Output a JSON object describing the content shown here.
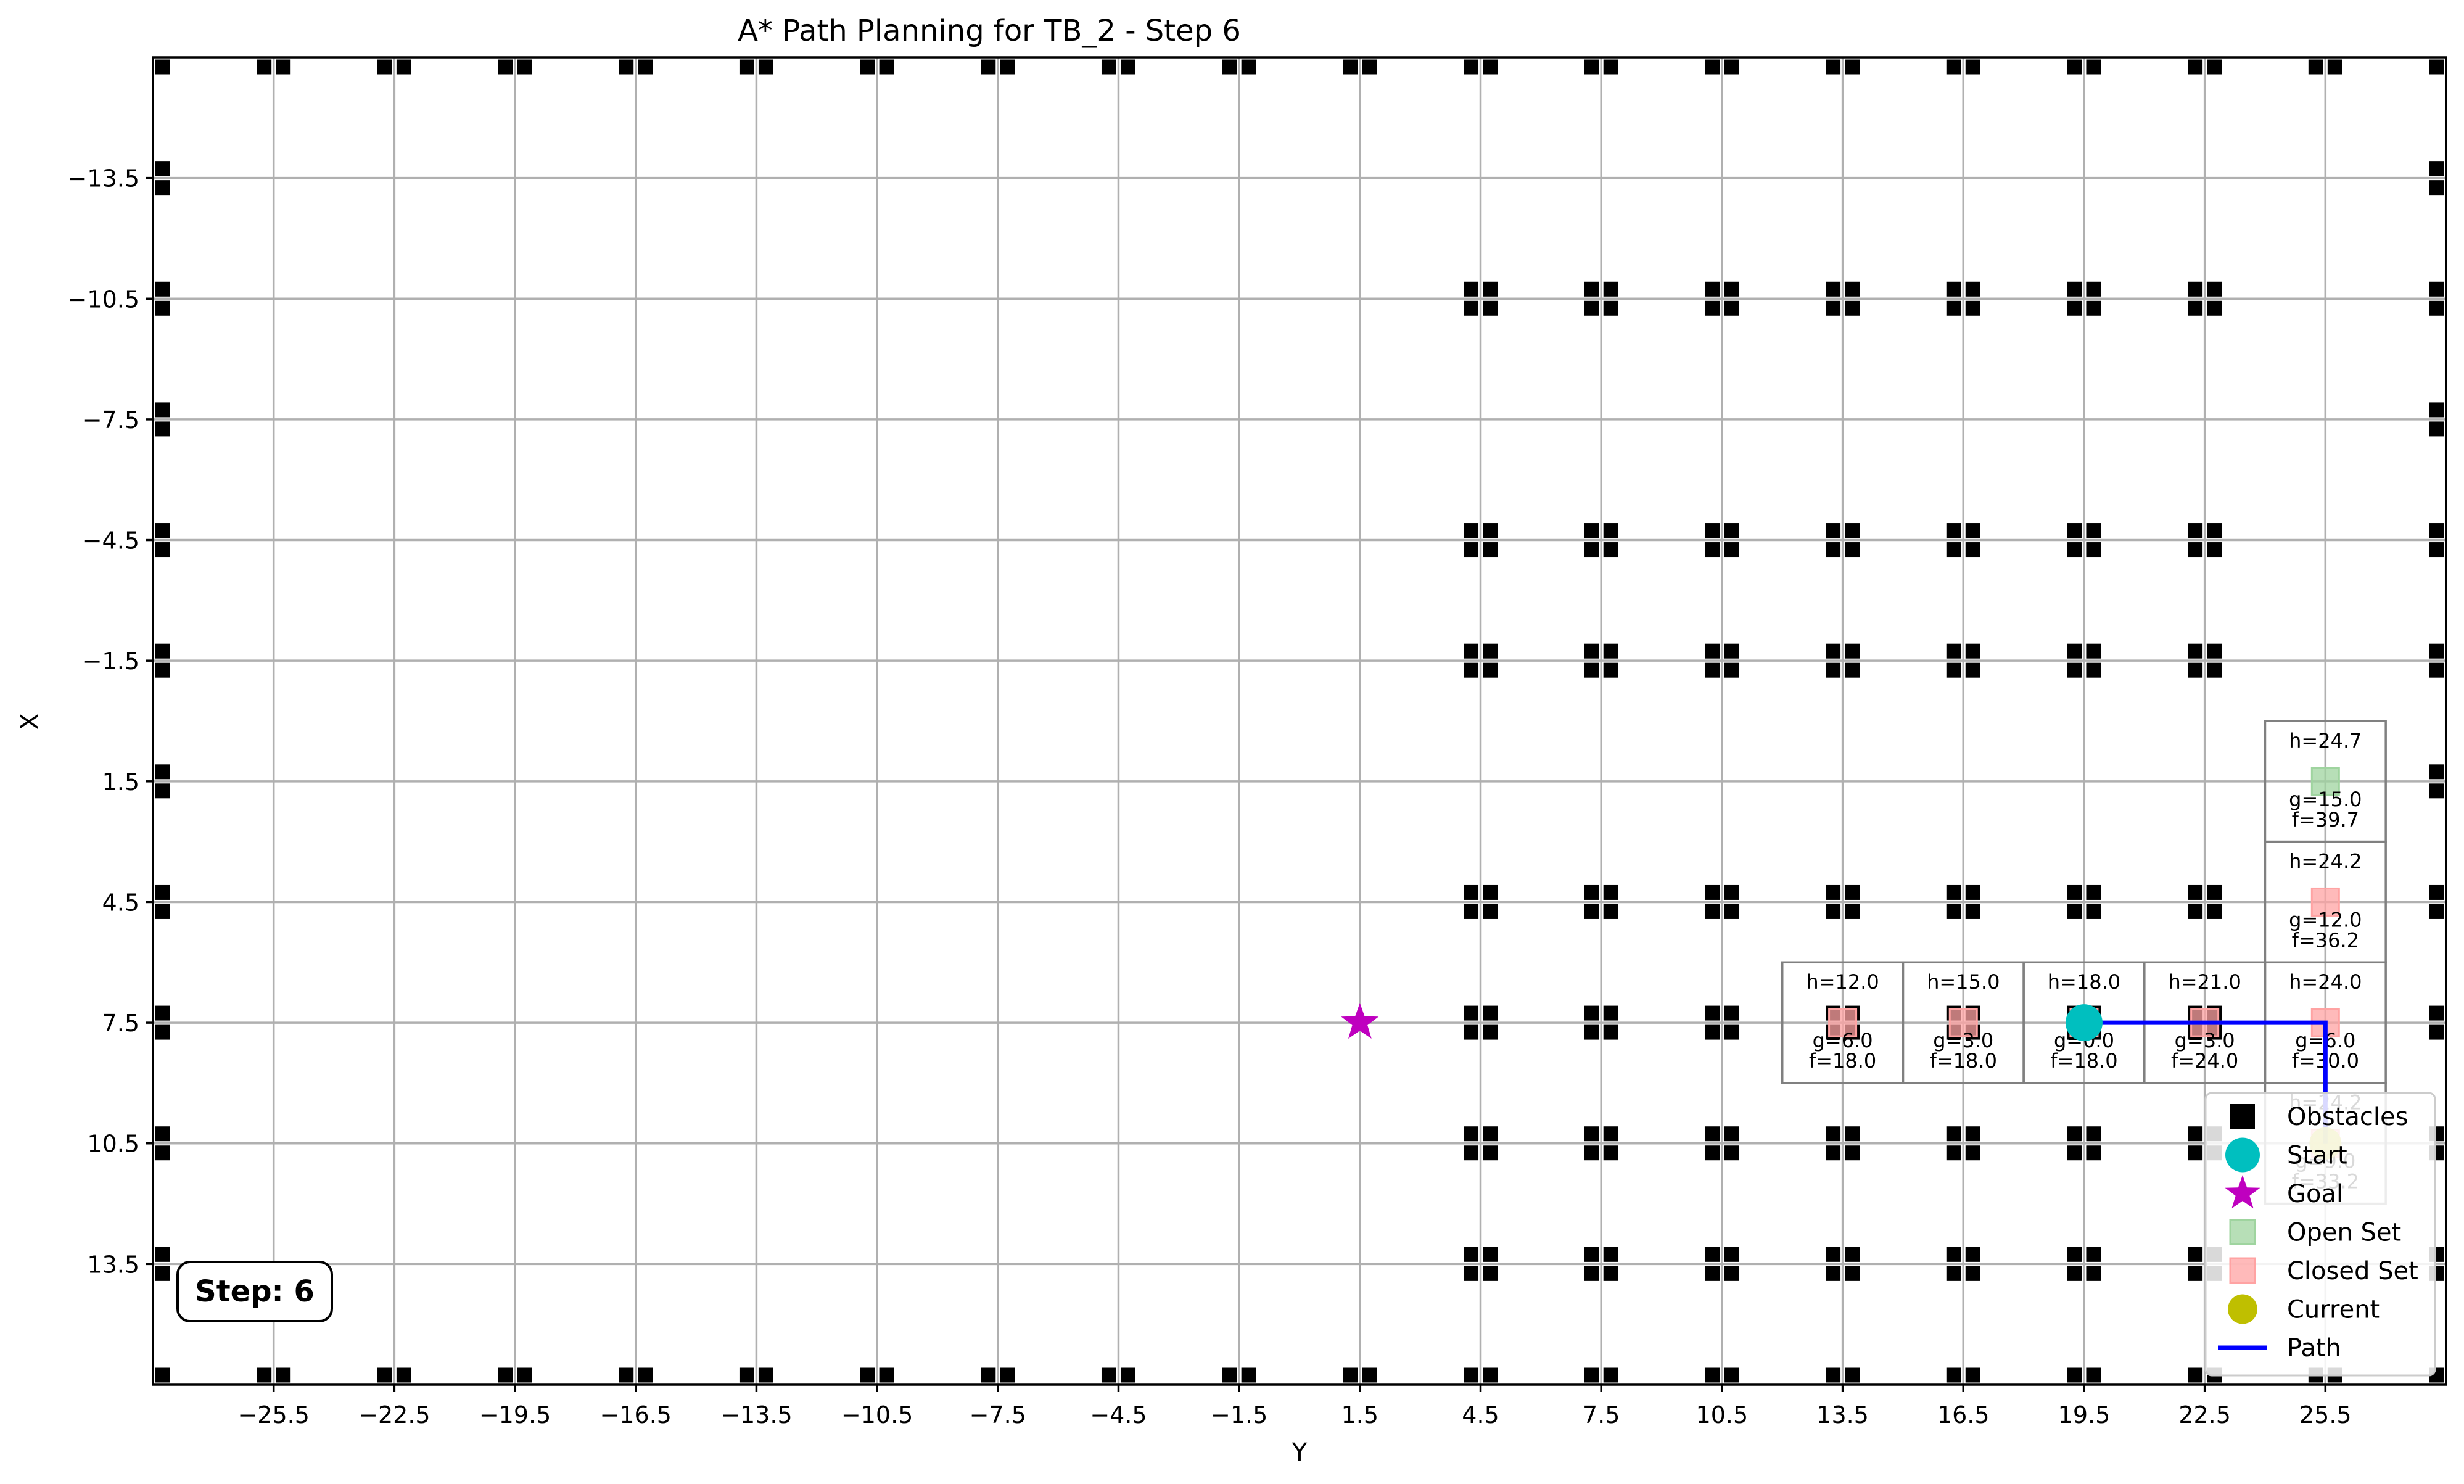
{
  "chart_data": {
    "type": "scatter",
    "title": "A* Path Planning for TB_2 - Step 6",
    "xlabel": "Y",
    "ylabel": "X",
    "xlim": [
      -28.5,
      28.5
    ],
    "ylim": [
      16.5,
      -16.5
    ],
    "y_axis_inverted": true,
    "grid": true,
    "x_ticks": [
      -25.5,
      -22.5,
      -19.5,
      -16.5,
      -13.5,
      -10.5,
      -7.5,
      -4.5,
      -1.5,
      1.5,
      4.5,
      7.5,
      10.5,
      13.5,
      16.5,
      19.5,
      22.5,
      25.5
    ],
    "x_tick_labels": [
      "−25.5",
      "−22.5",
      "−19.5",
      "−16.5",
      "−13.5",
      "−10.5",
      "−7.5",
      "−4.5",
      "−1.5",
      "1.5",
      "4.5",
      "7.5",
      "10.5",
      "13.5",
      "16.5",
      "19.5",
      "22.5",
      "25.5"
    ],
    "y_ticks": [
      -13.5,
      -10.5,
      -7.5,
      -4.5,
      -1.5,
      1.5,
      4.5,
      7.5,
      10.5,
      13.5
    ],
    "y_tick_labels": [
      "−13.5",
      "−10.5",
      "−7.5",
      "−4.5",
      "−1.5",
      "1.5",
      "4.5",
      "7.5",
      "10.5",
      "13.5"
    ],
    "obstacles": {
      "boundary_top_x": [
        -25.5,
        -22.5,
        -19.5,
        -16.5,
        -13.5,
        -10.5,
        -7.5,
        -4.5,
        -1.5,
        1.5,
        4.5,
        7.5,
        10.5,
        13.5,
        16.5,
        19.5,
        22.5,
        25.5
      ],
      "boundary_top_y": -16.5,
      "boundary_bottom_x": [
        -25.5,
        -22.5,
        -19.5,
        -16.5,
        -13.5,
        -10.5,
        -7.5,
        -4.5,
        -1.5,
        1.5,
        4.5,
        7.5,
        10.5,
        13.5,
        16.5,
        19.5,
        22.5,
        25.5
      ],
      "boundary_bottom_y": 16.5,
      "boundary_left_y": [
        -16.5,
        -13.5,
        -10.5,
        -7.5,
        -4.5,
        -1.5,
        1.5,
        4.5,
        7.5,
        10.5,
        13.5,
        16.5
      ],
      "boundary_left_x": -28.5,
      "boundary_right_y": [
        -16.5,
        -13.5,
        -10.5,
        -7.5,
        -4.5,
        -1.5,
        1.5,
        4.5,
        7.5,
        10.5,
        13.5,
        16.5
      ],
      "boundary_right_x": 28.5,
      "shelf_x": [
        4.5,
        7.5,
        10.5,
        13.5,
        16.5,
        19.5,
        22.5
      ],
      "shelf_rows_y": [
        -10.5,
        -4.5,
        -1.5,
        4.5,
        7.5,
        10.5,
        13.5
      ]
    },
    "start": {
      "x": 19.5,
      "y": 7.5
    },
    "goal": {
      "x": 1.5,
      "y": 7.5
    },
    "current": {
      "x": 25.5,
      "y": 10.5
    },
    "open_set": [
      {
        "x": 25.5,
        "y": 1.5,
        "h": "h=24.7",
        "g": "g=15.0",
        "f": "f=39.7"
      }
    ],
    "closed_set": [
      {
        "x": 25.5,
        "y": 4.5,
        "h": "h=24.2",
        "g": "g=12.0",
        "f": "f=36.2"
      },
      {
        "x": 13.5,
        "y": 7.5,
        "h": "h=12.0",
        "g": "g=6.0",
        "f": "f=18.0"
      },
      {
        "x": 16.5,
        "y": 7.5,
        "h": "h=15.0",
        "g": "g=3.0",
        "f": "f=18.0"
      },
      {
        "x": 19.5,
        "y": 7.5,
        "h": "h=18.0",
        "g": "g=0.0",
        "f": "f=18.0"
      },
      {
        "x": 22.5,
        "y": 7.5,
        "h": "h=21.0",
        "g": "g=3.0",
        "f": "f=24.0"
      },
      {
        "x": 25.5,
        "y": 7.5,
        "h": "h=24.0",
        "g": "g=6.0",
        "f": "f=30.0"
      },
      {
        "x": 25.5,
        "y": 10.5,
        "h": "h=24.2",
        "g": "g=9.0",
        "f": "f=33.2"
      }
    ],
    "path": [
      {
        "x": 19.5,
        "y": 7.5
      },
      {
        "x": 25.5,
        "y": 7.5
      },
      {
        "x": 25.5,
        "y": 10.5
      }
    ],
    "legend": [
      "Obstacles",
      "Start",
      "Goal",
      "Open Set",
      "Closed Set",
      "Current",
      "Path"
    ],
    "legend_position": "lower-right",
    "step_label": "Step: 6"
  },
  "colors": {
    "obstacle": "#000000",
    "start": "#00bfbf",
    "goal": "#bf00bf",
    "open_set": "#9fd49f",
    "closed_set": "#ffa3a3",
    "current": "#bfbf00",
    "path": "#0000ff"
  }
}
